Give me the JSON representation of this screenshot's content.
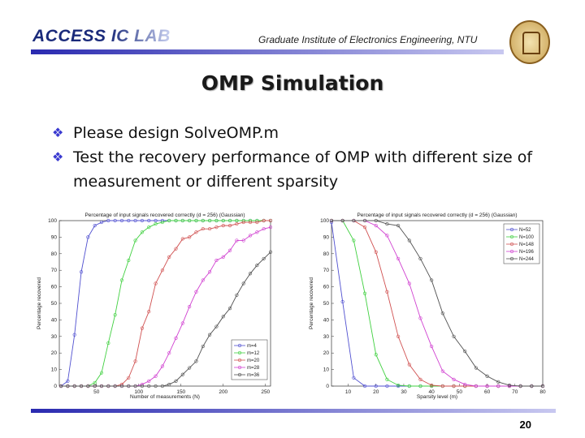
{
  "header": {
    "logo": "ACCESS IC LAB",
    "institute": "Graduate Institute of Electronics Engineering, NTU"
  },
  "slide": {
    "title": "OMP Simulation",
    "bullets": [
      "Please design SolveOMP.m",
      "Test the recovery performance of OMP with different size of measurement or different sparsity"
    ],
    "page_number": "20"
  },
  "colors": {
    "header_bar": "#2a2ab0",
    "bullet": "#3a3ad0"
  },
  "chart_data": [
    {
      "type": "line",
      "title": "Percentage of input signals recovered correctly (d = 256) (Gaussian)",
      "xlabel": "Number of measurements (N)",
      "ylabel": "Percentage recovered",
      "xlim": [
        6,
        256
      ],
      "ylim": [
        0,
        100
      ],
      "xticks": [
        50,
        100,
        150,
        200,
        250
      ],
      "yticks": [
        0,
        10,
        20,
        30,
        40,
        50,
        60,
        70,
        80,
        90,
        100
      ],
      "legend": "bottom-right",
      "grid": false,
      "x": [
        8,
        16,
        24,
        32,
        40,
        48,
        56,
        64,
        72,
        80,
        88,
        96,
        104,
        112,
        120,
        128,
        136,
        144,
        152,
        160,
        168,
        176,
        184,
        192,
        200,
        208,
        216,
        224,
        232,
        240,
        248,
        256
      ],
      "series": [
        {
          "name": "m=4",
          "color": "#5050d0",
          "values": [
            0,
            3,
            31,
            69,
            90,
            97,
            99,
            100,
            100,
            100,
            100,
            100,
            100,
            100,
            100,
            100,
            100,
            100,
            100,
            100,
            100,
            100,
            100,
            100,
            100,
            100,
            100,
            100,
            100,
            100,
            100,
            100
          ]
        },
        {
          "name": "m=12",
          "color": "#40d040",
          "values": [
            0,
            0,
            0,
            0,
            0,
            2,
            8,
            26,
            43,
            64,
            76,
            88,
            93,
            96,
            98,
            99,
            100,
            100,
            100,
            100,
            100,
            100,
            100,
            100,
            100,
            100,
            100,
            100,
            100,
            100,
            100,
            100
          ]
        },
        {
          "name": "m=20",
          "color": "#d05050",
          "values": [
            0,
            0,
            0,
            0,
            0,
            0,
            0,
            0,
            0,
            1,
            5,
            15,
            35,
            45,
            62,
            70,
            78,
            83,
            89,
            90,
            93,
            95,
            95,
            96,
            97,
            97,
            98,
            99,
            99,
            99,
            100,
            100
          ]
        },
        {
          "name": "m=28",
          "color": "#d040d0",
          "values": [
            0,
            0,
            0,
            0,
            0,
            0,
            0,
            0,
            0,
            0,
            0,
            0,
            1,
            3,
            6,
            12,
            20,
            29,
            38,
            48,
            57,
            64,
            69,
            76,
            78,
            82,
            88,
            88,
            91,
            93,
            95,
            96
          ]
        },
        {
          "name": "m=36",
          "color": "#505050",
          "values": [
            0,
            0,
            0,
            0,
            0,
            0,
            0,
            0,
            0,
            0,
            0,
            0,
            0,
            0,
            0,
            0,
            1,
            3,
            7,
            11,
            15,
            24,
            31,
            36,
            42,
            47,
            55,
            62,
            68,
            73,
            77,
            81
          ]
        }
      ]
    },
    {
      "type": "line",
      "title": "Percentage of input signals recovered correctly (d = 256) (Gaussian)",
      "xlabel": "Sparsity level (m)",
      "ylabel": "Percentage recovered",
      "xlim": [
        4,
        80
      ],
      "ylim": [
        0,
        100
      ],
      "xticks": [
        10,
        20,
        30,
        40,
        50,
        60,
        70,
        80
      ],
      "yticks": [
        0,
        10,
        20,
        30,
        40,
        50,
        60,
        70,
        80,
        90,
        100
      ],
      "legend": "top-right",
      "grid": false,
      "x": [
        4,
        8,
        12,
        16,
        20,
        24,
        28,
        32,
        36,
        40,
        44,
        48,
        52,
        56,
        60,
        64,
        68,
        72,
        76,
        80
      ],
      "series": [
        {
          "name": "N=52",
          "color": "#5050d0",
          "values": [
            99,
            51,
            5,
            0,
            0,
            0,
            0,
            0,
            0,
            0,
            0,
            0,
            0,
            0,
            0,
            0,
            0,
            0,
            0,
            0
          ]
        },
        {
          "name": "N=100",
          "color": "#40d040",
          "values": [
            100,
            100,
            88,
            56,
            19,
            4,
            0.5,
            0,
            0,
            0,
            0,
            0,
            0,
            0,
            0,
            0,
            0,
            0,
            0,
            0
          ]
        },
        {
          "name": "N=148",
          "color": "#d05050",
          "values": [
            100,
            100,
            100,
            96,
            81,
            57,
            30,
            13,
            4,
            0.5,
            0,
            0,
            0,
            0,
            0,
            0,
            0,
            0,
            0,
            0
          ]
        },
        {
          "name": "N=196",
          "color": "#d040d0",
          "values": [
            100,
            100,
            100,
            100,
            97,
            91,
            77,
            62,
            41,
            24,
            9,
            4,
            1,
            0,
            0,
            0,
            0,
            0,
            0,
            0
          ]
        },
        {
          "name": "N=244",
          "color": "#505050",
          "values": [
            100,
            100,
            100,
            100,
            100,
            98,
            97,
            88,
            77,
            64,
            44,
            30,
            21,
            11,
            6,
            2.5,
            0.5,
            0,
            0,
            0
          ]
        }
      ]
    }
  ]
}
